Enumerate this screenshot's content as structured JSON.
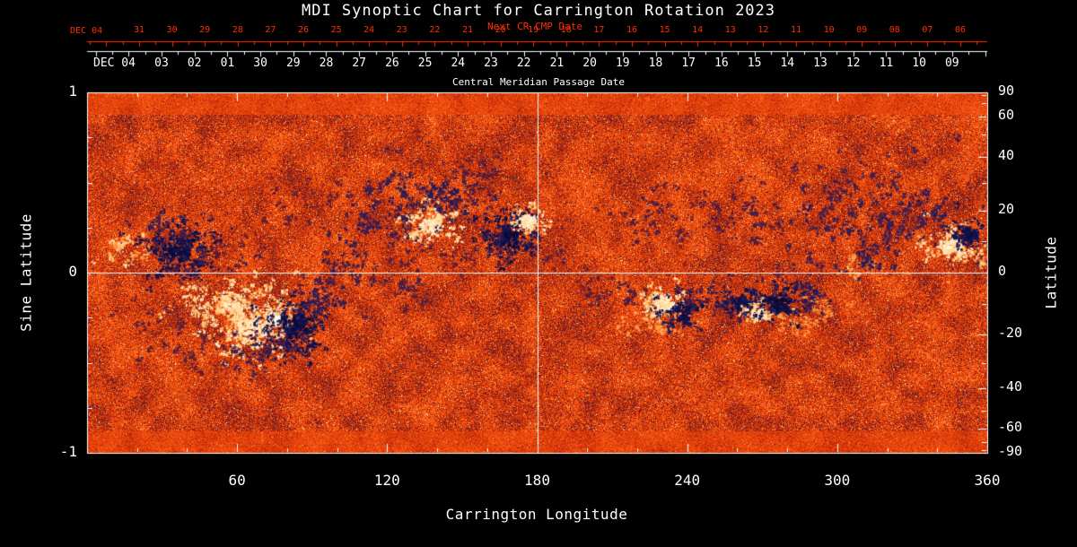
{
  "chart_data": {
    "type": "heatmap",
    "title": "MDI Synoptic Chart for Carrington Rotation 2023",
    "xlabel": "Carrington Longitude",
    "ylabel_left": "Sine Latitude",
    "ylabel_right": "Latitude",
    "top_axis_red_label": "Next CR CMP Date",
    "top_axis_white_label": "Central Meridian Passage Date",
    "red_axis_prefix": "DEC 04",
    "white_axis_prefix": "DEC 04",
    "red_axis_days": [
      "31",
      "30",
      "29",
      "28",
      "27",
      "26",
      "25",
      "24",
      "23",
      "22",
      "21",
      "20",
      "19",
      "18",
      "17",
      "16",
      "15",
      "14",
      "13",
      "12",
      "11",
      "10",
      "09",
      "08",
      "07",
      "06"
    ],
    "white_axis_days": [
      "03",
      "02",
      "01",
      "30",
      "29",
      "28",
      "27",
      "26",
      "25",
      "24",
      "23",
      "22",
      "21",
      "20",
      "19",
      "18",
      "17",
      "16",
      "15",
      "14",
      "13",
      "12",
      "11",
      "10",
      "09"
    ],
    "xlim": [
      0,
      360
    ],
    "x_ticks": [
      60,
      120,
      180,
      240,
      300,
      360
    ],
    "x_minor_step": 20,
    "left_ticks": [
      "1",
      "0",
      "-1"
    ],
    "left_tick_values": [
      1,
      0,
      -1
    ],
    "left_minor_values": [
      0.75,
      0.5,
      0.25,
      -0.25,
      -0.5,
      -0.75
    ],
    "right_ticks": [
      90,
      60,
      40,
      20,
      0,
      -20,
      -40,
      -60,
      -90
    ],
    "right_minor_ticks": [
      80,
      70,
      50,
      30,
      10,
      -10,
      -30,
      -50,
      -70,
      -80
    ],
    "crosshair": {
      "longitude": 180,
      "sine_latitude": 0
    },
    "grid": false,
    "legend": "none",
    "colors": {
      "background": "#000000",
      "axis_white": "#ffffff",
      "axis_red": "#ff2e00",
      "neutral_orange": "#e23a08",
      "negative_polarity": "#1a1c5f",
      "positive_polarity": "#ffffff"
    },
    "colormap_stops": [
      {
        "t": -1.0,
        "c": "#05052d"
      },
      {
        "t": -0.6,
        "c": "#1a1c5f"
      },
      {
        "t": -0.35,
        "c": "#371e55"
      },
      {
        "t": -0.18,
        "c": "#781c1e"
      },
      {
        "t": -0.06,
        "c": "#be2d08"
      },
      {
        "t": 0.0,
        "c": "#e23a08"
      },
      {
        "t": 0.18,
        "c": "#ff681a"
      },
      {
        "t": 0.4,
        "c": "#ffa046"
      },
      {
        "t": 0.65,
        "c": "#ffd68c"
      },
      {
        "t": 1.0,
        "c": "#ffffff"
      }
    ],
    "active_regions": [
      {
        "lon": 12,
        "slat": 0.15,
        "sx": 5,
        "sy": 0.05,
        "amp": 0.8,
        "density": 0.7
      },
      {
        "lon": 20,
        "slat": 0.1,
        "sx": 4,
        "sy": 0.04,
        "amp": 0.5,
        "density": 0.4
      },
      {
        "lon": 36,
        "slat": 0.12,
        "sx": 8,
        "sy": 0.09,
        "amp": -0.95,
        "density": 1.3
      },
      {
        "lon": 30,
        "slat": 0.24,
        "sx": 7,
        "sy": 0.05,
        "amp": -0.5,
        "density": 0.5
      },
      {
        "lon": 44,
        "slat": 0.05,
        "sx": 5,
        "sy": 0.05,
        "amp": -0.5,
        "density": 0.5
      },
      {
        "lon": 34,
        "slat": -0.36,
        "sx": 14,
        "sy": 0.1,
        "amp": -0.35,
        "density": 0.25,
        "angle": 20
      },
      {
        "lon": 57,
        "slat": -0.17,
        "sx": 9,
        "sy": 0.08,
        "amp": 0.85,
        "density": 1.1
      },
      {
        "lon": 66,
        "slat": -0.3,
        "sx": 9,
        "sy": 0.09,
        "amp": 0.9,
        "density": 1.1
      },
      {
        "lon": 75,
        "slat": -0.26,
        "sx": 3,
        "sy": 0.035,
        "amp": 1.0,
        "density": 2.2
      },
      {
        "lon": 83,
        "slat": -0.3,
        "sx": 7,
        "sy": 0.09,
        "amp": -0.95,
        "density": 1.5
      },
      {
        "lon": 72,
        "slat": -0.44,
        "sx": 9,
        "sy": 0.06,
        "amp": -0.5,
        "density": 0.5
      },
      {
        "lon": 90,
        "slat": -0.18,
        "sx": 5,
        "sy": 0.05,
        "amp": -0.6,
        "density": 0.6
      },
      {
        "lon": 98,
        "slat": -0.1,
        "sx": 7,
        "sy": 0.07,
        "amp": -0.5,
        "density": 0.5
      },
      {
        "lon": 104,
        "slat": 0.06,
        "sx": 5,
        "sy": 0.05,
        "amp": -0.45,
        "density": 0.45
      },
      {
        "lon": 112,
        "slat": 0.28,
        "sx": 7,
        "sy": 0.06,
        "amp": -0.55,
        "density": 0.55
      },
      {
        "lon": 122,
        "slat": 0.4,
        "sx": 12,
        "sy": 0.1,
        "amp": -0.55,
        "density": 0.4,
        "angle": -25
      },
      {
        "lon": 138,
        "slat": 0.27,
        "sx": 6,
        "sy": 0.06,
        "amp": 0.9,
        "density": 1.2
      },
      {
        "lon": 144,
        "slat": 0.4,
        "sx": 7,
        "sy": 0.07,
        "amp": -0.7,
        "density": 0.8
      },
      {
        "lon": 131,
        "slat": 0.16,
        "sx": 5,
        "sy": 0.05,
        "amp": -0.45,
        "density": 0.45
      },
      {
        "lon": 128,
        "slat": -0.06,
        "sx": 9,
        "sy": 0.07,
        "amp": -0.4,
        "density": 0.4
      },
      {
        "lon": 152,
        "slat": 0.46,
        "sx": 10,
        "sy": 0.08,
        "amp": -0.4,
        "density": 0.3,
        "angle": -25
      },
      {
        "lon": 168,
        "slat": 0.21,
        "sx": 6,
        "sy": 0.08,
        "amp": -0.95,
        "density": 1.5
      },
      {
        "lon": 176,
        "slat": 0.29,
        "sx": 4,
        "sy": 0.05,
        "amp": 0.9,
        "density": 1.2
      },
      {
        "lon": 160,
        "slat": 0.13,
        "sx": 6,
        "sy": 0.05,
        "amp": -0.45,
        "density": 0.4
      },
      {
        "lon": 185,
        "slat": 0.1,
        "sx": 5,
        "sy": 0.05,
        "amp": -0.35,
        "density": 0.35
      },
      {
        "lon": 205,
        "slat": -0.08,
        "sx": 7,
        "sy": 0.06,
        "amp": -0.35,
        "density": 0.3
      },
      {
        "lon": 218,
        "slat": -0.15,
        "sx": 5,
        "sy": 0.05,
        "amp": -0.4,
        "density": 0.4
      },
      {
        "lon": 230,
        "slat": -0.17,
        "sx": 5,
        "sy": 0.06,
        "amp": 0.9,
        "density": 1.1
      },
      {
        "lon": 237,
        "slat": -0.21,
        "sx": 5,
        "sy": 0.06,
        "amp": -0.9,
        "density": 1.1
      },
      {
        "lon": 228,
        "slat": -0.29,
        "sx": 7,
        "sy": 0.05,
        "amp": 0.5,
        "density": 0.5
      },
      {
        "lon": 247,
        "slat": -0.12,
        "sx": 5,
        "sy": 0.05,
        "amp": -0.45,
        "density": 0.4
      },
      {
        "lon": 261,
        "slat": -0.17,
        "sx": 5,
        "sy": 0.05,
        "amp": -0.85,
        "density": 1.0
      },
      {
        "lon": 268,
        "slat": -0.22,
        "sx": 4,
        "sy": 0.05,
        "amp": 0.85,
        "density": 0.9
      },
      {
        "lon": 277,
        "slat": -0.17,
        "sx": 6,
        "sy": 0.06,
        "amp": -0.95,
        "density": 1.2
      },
      {
        "lon": 289,
        "slat": -0.13,
        "sx": 4,
        "sy": 0.05,
        "amp": -0.75,
        "density": 0.8
      },
      {
        "lon": 284,
        "slat": -0.26,
        "sx": 7,
        "sy": 0.05,
        "amp": 0.5,
        "density": 0.5
      },
      {
        "lon": 296,
        "slat": -0.2,
        "sx": 5,
        "sy": 0.04,
        "amp": 0.4,
        "density": 0.4
      },
      {
        "lon": 306,
        "slat": 0.03,
        "sx": 4,
        "sy": 0.04,
        "amp": 0.6,
        "density": 0.6
      },
      {
        "lon": 311,
        "slat": 0.07,
        "sx": 4,
        "sy": 0.04,
        "amp": -0.65,
        "density": 0.7
      },
      {
        "lon": 295,
        "slat": 0.35,
        "sx": 20,
        "sy": 0.14,
        "amp": -0.45,
        "density": 0.3,
        "angle": -25
      },
      {
        "lon": 318,
        "slat": 0.28,
        "sx": 10,
        "sy": 0.09,
        "amp": -0.5,
        "density": 0.35,
        "angle": -25
      },
      {
        "lon": 334,
        "slat": 0.32,
        "sx": 9,
        "sy": 0.08,
        "amp": -0.55,
        "density": 0.45,
        "angle": -20
      },
      {
        "lon": 345,
        "slat": 0.15,
        "sx": 6,
        "sy": 0.06,
        "amp": 0.9,
        "density": 1.1
      },
      {
        "lon": 352,
        "slat": 0.22,
        "sx": 5,
        "sy": 0.06,
        "amp": -0.9,
        "density": 1.1
      },
      {
        "lon": 357,
        "slat": 0.1,
        "sx": 3,
        "sy": 0.04,
        "amp": 0.7,
        "density": 0.8
      },
      {
        "lon": 225,
        "slat": 0.3,
        "sx": 12,
        "sy": 0.1,
        "amp": -0.35,
        "density": 0.2,
        "angle": -20
      },
      {
        "lon": 255,
        "slat": 0.35,
        "sx": 12,
        "sy": 0.1,
        "amp": -0.4,
        "density": 0.25,
        "angle": -25
      },
      {
        "lon": 80,
        "slat": 0.35,
        "sx": 10,
        "sy": 0.08,
        "amp": -0.3,
        "density": 0.2,
        "angle": -20
      },
      {
        "lon": 60,
        "slat": 0.1,
        "sx": 6,
        "sy": 0.05,
        "amp": -0.35,
        "density": 0.3
      }
    ]
  }
}
